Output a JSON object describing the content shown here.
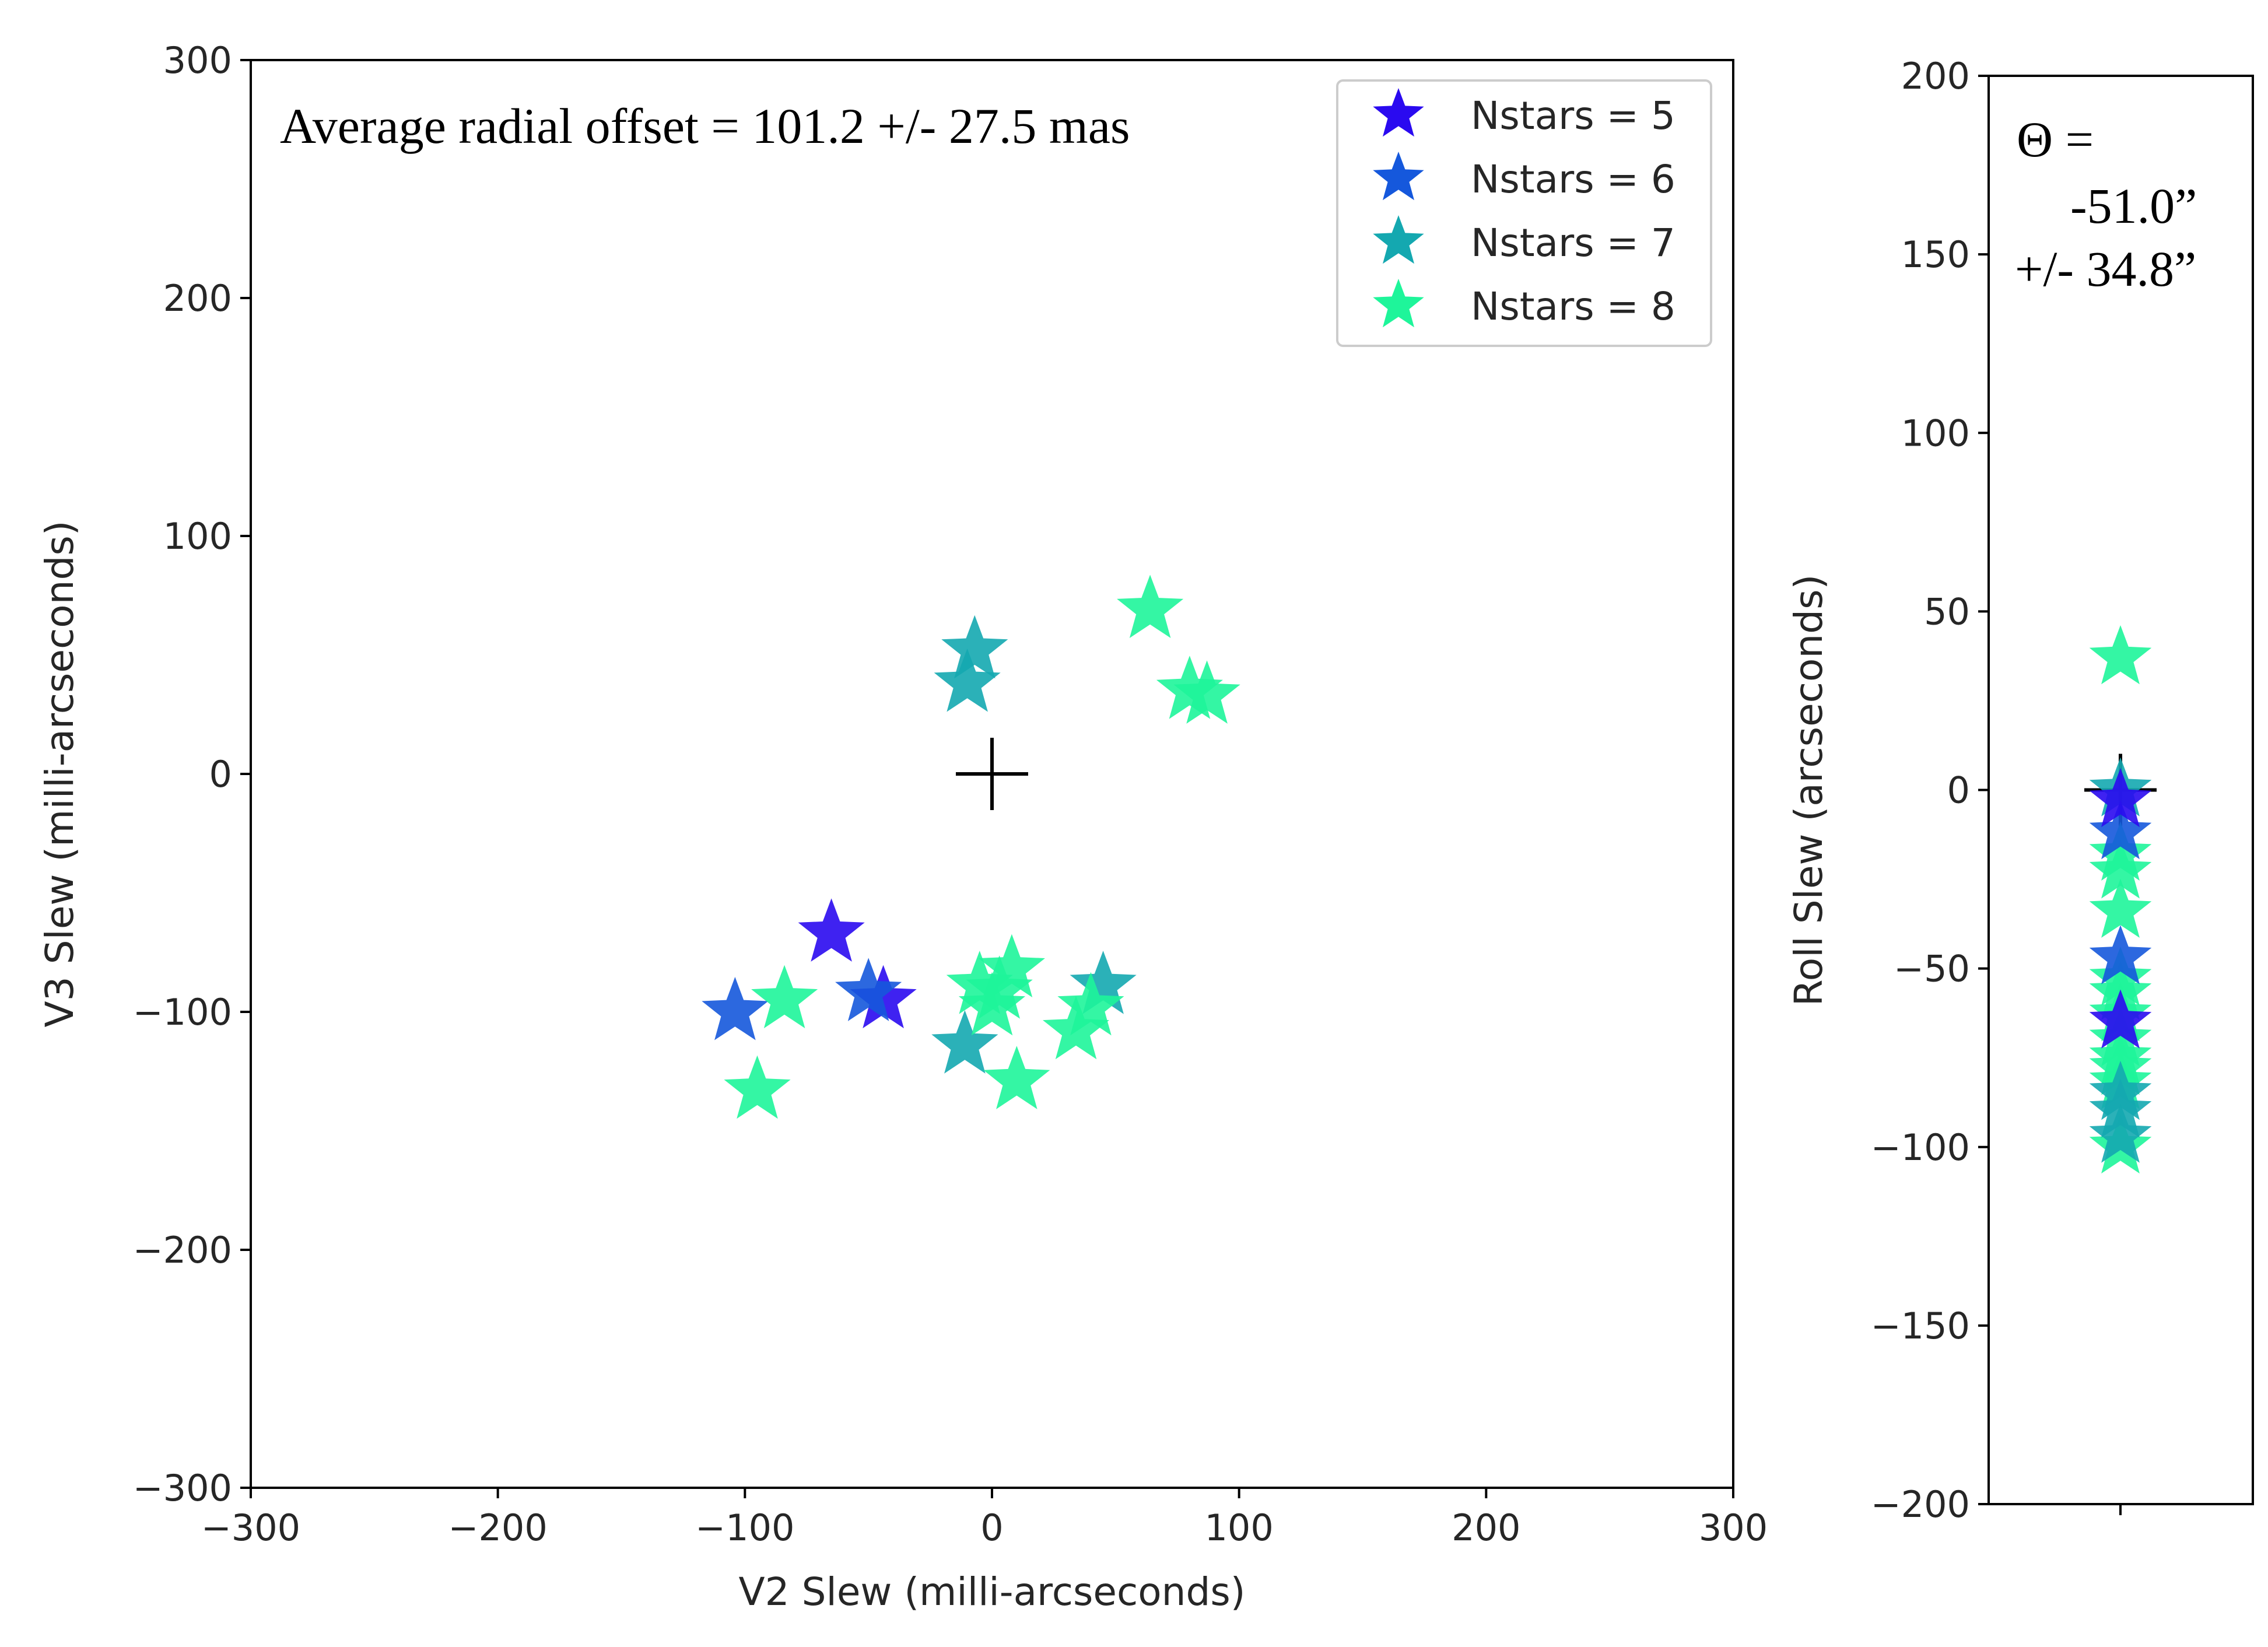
{
  "chart_data": [
    {
      "type": "scatter",
      "title": "",
      "xlabel": "V2 Slew (milli-arcseconds)",
      "ylabel": "V3 Slew (milli-arcseconds)",
      "xlim": [
        -300,
        300
      ],
      "ylim": [
        -300,
        300
      ],
      "xticks": [
        "−300",
        "−200",
        "−100",
        "0",
        "100",
        "200",
        "300"
      ],
      "yticks": [
        "300",
        "200",
        "100",
        "0",
        "−100",
        "−200",
        "−300"
      ],
      "annotation": "Average radial offset =  101.2 +/- 27.5 mas",
      "legend_position": "top-right",
      "grid": false,
      "series": [
        {
          "name": "Nstars = 5",
          "color": "#2a0af0",
          "marker": "star",
          "points": [
            [
              -65,
              -67
            ],
            [
              -44,
              -95
            ]
          ]
        },
        {
          "name": "Nstars = 6",
          "color": "#1558dc",
          "marker": "star",
          "points": [
            [
              -104,
              -100
            ],
            [
              -50,
              -92
            ]
          ]
        },
        {
          "name": "Nstars = 7",
          "color": "#14a8b0",
          "marker": "star",
          "points": [
            [
              -7,
              52
            ],
            [
              -10,
              38
            ],
            [
              -11,
              -114
            ],
            [
              45,
              -89
            ]
          ]
        },
        {
          "name": "Nstars = 8",
          "color": "#1ef59a",
          "marker": "star",
          "points": [
            [
              64,
              69
            ],
            [
              80,
              35
            ],
            [
              87,
              33
            ],
            [
              -84,
              -95
            ],
            [
              -95,
              -133
            ],
            [
              -5,
              -89
            ],
            [
              0,
              -98
            ],
            [
              8,
              -82
            ],
            [
              3,
              -91
            ],
            [
              10,
              -129
            ],
            [
              34,
              -108
            ],
            [
              40,
              -98
            ]
          ]
        }
      ],
      "reference_marker": {
        "x": 0,
        "y": 0,
        "symbol": "+"
      }
    },
    {
      "type": "scatter",
      "title": "",
      "xlabel": "",
      "ylabel": "Roll Slew (arcseconds)",
      "ylim": [
        -200,
        200
      ],
      "yticks": [
        "200",
        "150",
        "100",
        "50",
        "0",
        "−50",
        "−100",
        "−150",
        "−200"
      ],
      "annotation": [
        "Θ  =",
        "-51.0”",
        "+/- 34.8”"
      ],
      "series": [
        {
          "name": "Nstars = 5",
          "color": "#2a0af0",
          "values": [
            -3,
            -65
          ]
        },
        {
          "name": "Nstars = 6",
          "color": "#1558dc",
          "values": [
            -12,
            -47
          ]
        },
        {
          "name": "Nstars = 7",
          "color": "#14a8b0",
          "values": [
            0,
            -85,
            -90,
            -97
          ]
        },
        {
          "name": "Nstars = 8",
          "color": "#1ef59a",
          "values": [
            37,
            -18,
            -23,
            -34,
            -53,
            -57,
            -63,
            -70,
            -75,
            -78,
            -82,
            -100
          ]
        }
      ],
      "reference_marker": {
        "y": 0,
        "symbol": "+"
      }
    }
  ]
}
